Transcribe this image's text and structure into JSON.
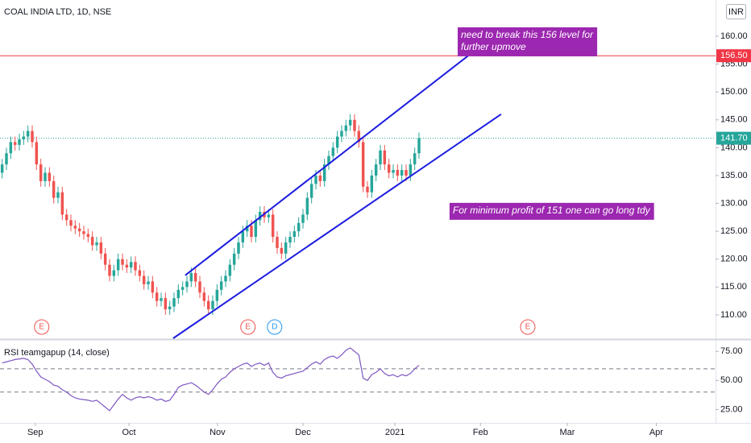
{
  "chart_data": [
    {
      "type": "candlestick",
      "title": "COAL INDIA LTD, 1D, NSE",
      "currency": "INR",
      "up_color": "#26a69a",
      "down_color": "#ef5350",
      "open": [
        135.5,
        137,
        139,
        141,
        140.5,
        141.5,
        142,
        143,
        141,
        137,
        134,
        135.5,
        134,
        131,
        132,
        128,
        127,
        126,
        125.5,
        125,
        124.5,
        124,
        122.5,
        123,
        121,
        119,
        117,
        118,
        120,
        119,
        118.5,
        119.5,
        118,
        117,
        115.5,
        116,
        114,
        112.5,
        113,
        111,
        111.5,
        113,
        114.5,
        115,
        116,
        117.5,
        116,
        114,
        112.5,
        111,
        112.5,
        114.5,
        116,
        117,
        119,
        121,
        123,
        125,
        126,
        124,
        127,
        128.5,
        127.5,
        128,
        124,
        122,
        121,
        123,
        124,
        125,
        126.5,
        128,
        131,
        133.5,
        135,
        134,
        137,
        138.5,
        140,
        142,
        143,
        144,
        145,
        143,
        141,
        133,
        132,
        135,
        137,
        139.5,
        137,
        135.5,
        136,
        135,
        136,
        135,
        137,
        139
      ],
      "high": [
        138,
        140,
        142,
        142,
        142.5,
        143,
        144,
        144,
        142,
        138,
        136.5,
        136.5,
        135,
        133,
        133,
        129,
        128,
        127,
        126.5,
        126,
        125.5,
        125,
        124,
        124,
        122,
        120,
        119,
        121,
        121,
        120,
        120.5,
        120.5,
        119,
        118,
        117,
        117,
        115,
        114,
        114,
        112.5,
        114,
        115.5,
        116,
        117,
        118.5,
        118.5,
        117,
        115,
        113.5,
        113.5,
        115.5,
        117,
        118,
        120,
        122,
        124,
        126,
        127,
        127,
        128,
        129.5,
        129.5,
        129,
        129,
        125,
        123,
        124,
        125,
        126,
        127.5,
        129,
        132,
        134.5,
        136,
        136,
        138,
        139.5,
        141,
        143,
        144,
        145,
        146,
        146,
        144,
        142,
        134,
        136,
        138,
        140.5,
        140.5,
        138,
        137,
        137,
        137,
        137,
        138,
        140,
        142.7
      ],
      "low": [
        134.5,
        136,
        138,
        139.5,
        139.5,
        140.5,
        141,
        140,
        136,
        133,
        133,
        133,
        130,
        130,
        127,
        126,
        125,
        124.5,
        124,
        123.5,
        123,
        121.5,
        121.5,
        120,
        118,
        116,
        116,
        117,
        118,
        117.5,
        117.5,
        117,
        116,
        114.5,
        114.5,
        113,
        111.5,
        111.5,
        110,
        110,
        110.5,
        112,
        113.5,
        114,
        115,
        115,
        113,
        111.5,
        110,
        110,
        111.5,
        113.5,
        115,
        116,
        118,
        120,
        122,
        124,
        123,
        123,
        126,
        126.5,
        126.5,
        123,
        121,
        120,
        120,
        122,
        123,
        124,
        125.5,
        127,
        130,
        132.5,
        133,
        133,
        136,
        137.5,
        139,
        141,
        142,
        143,
        142,
        140,
        132,
        131,
        131,
        134,
        136,
        136,
        134.5,
        134.5,
        134,
        134,
        134,
        134,
        136,
        138
      ],
      "close": [
        137,
        139,
        141,
        140.5,
        141.5,
        142,
        143,
        141,
        137,
        134,
        135.5,
        134,
        131,
        132,
        128,
        127,
        126,
        125.5,
        125,
        124.5,
        124,
        122.5,
        123,
        121,
        119,
        117,
        118,
        120,
        119,
        118.5,
        119.5,
        118,
        117,
        115.5,
        116,
        114,
        112.5,
        113,
        111,
        111.5,
        113,
        114.5,
        115,
        116,
        117.5,
        116,
        114,
        112.5,
        111,
        112.5,
        114.5,
        116,
        117,
        119,
        121,
        123,
        125,
        126,
        124,
        127,
        128.5,
        127.5,
        128,
        124,
        122,
        121,
        123,
        124,
        125,
        126.5,
        128,
        131,
        133.5,
        135,
        134,
        137,
        138.5,
        140,
        142,
        143,
        144,
        145,
        143,
        141,
        133,
        132,
        135,
        137,
        139.5,
        137,
        135.5,
        136,
        135,
        136,
        135,
        137,
        139,
        141.7
      ],
      "xlim": [
        -0.5,
        166
      ],
      "xticks": [
        {
          "value": 7.7,
          "label": "Sep"
        },
        {
          "value": 29.5,
          "label": "Oct"
        },
        {
          "value": 50.1,
          "label": "Nov"
        },
        {
          "value": 70,
          "label": "Dec"
        },
        {
          "value": 91.4,
          "label": "2021"
        },
        {
          "value": 111.3,
          "label": "Feb"
        },
        {
          "value": 131.5,
          "label": "Mar"
        },
        {
          "value": 152.2,
          "label": "Apr"
        }
      ],
      "ylim": [
        105.8,
        166.5
      ],
      "yticks": [
        {
          "value": 110,
          "label": "110.00"
        },
        {
          "value": 115,
          "label": "115.00"
        },
        {
          "value": 120,
          "label": "120.00"
        },
        {
          "value": 125,
          "label": "125.00"
        },
        {
          "value": 130,
          "label": "130.00"
        },
        {
          "value": 135,
          "label": "135.00"
        },
        {
          "value": 140,
          "label": "140.00"
        },
        {
          "value": 145,
          "label": "145.00"
        },
        {
          "value": 150,
          "label": "150.00"
        },
        {
          "value": 155,
          "label": "155.00"
        },
        {
          "value": 160,
          "label": "160.00"
        }
      ],
      "grid": false,
      "price_line": {
        "value": 156.5,
        "label": "156.50",
        "color": "#f23645"
      },
      "last_price": {
        "value": 141.7,
        "label": "141.70",
        "color": "#26a69a"
      },
      "trendlines": [
        {
          "x": [
            42.6,
            110.1
          ],
          "y": [
            117.1,
            157.5
          ],
          "color": "#1c1ce0"
        },
        {
          "x": [
            39.8,
            116.1
          ],
          "y": [
            105.8,
            146.0
          ],
          "color": "#1c1ce0"
        }
      ],
      "annotations": [
        {
          "x": 106,
          "y": 161.6,
          "lines": [
            "need to break this 156 level for",
            "further upmove"
          ],
          "color": "#9c27b0"
        },
        {
          "x": 104.1,
          "y": 130.1,
          "lines": [
            "For minimum profit of 151 one can go long tdy"
          ],
          "color": "#9c27b0"
        }
      ],
      "events": [
        {
          "x": 9.2,
          "label": "E",
          "color": "#ef5350"
        },
        {
          "x": 57.2,
          "label": "E",
          "color": "#ef5350"
        },
        {
          "x": 63.4,
          "label": "D",
          "color": "#2196f3"
        },
        {
          "x": 122.3,
          "label": "E",
          "color": "#ef5350"
        }
      ]
    },
    {
      "type": "line",
      "title": "RSI teamgapup (14, close)",
      "color": "#7e57c2",
      "values": [
        65,
        66,
        67,
        68,
        68.5,
        69,
        68,
        64,
        58,
        53,
        51,
        49,
        46,
        45,
        42,
        40,
        37,
        35,
        34,
        33.5,
        33,
        32,
        33,
        30,
        27,
        24,
        29,
        34,
        38,
        35,
        33,
        35,
        36,
        35,
        36,
        35,
        33,
        34,
        32,
        33,
        38,
        44,
        46,
        47,
        48,
        46,
        43,
        40,
        38,
        42,
        47,
        51,
        53,
        57,
        60,
        62,
        64,
        65,
        62,
        64,
        65,
        63,
        65,
        57,
        53,
        52,
        54,
        55,
        56,
        57,
        58,
        61,
        64,
        66,
        64,
        68,
        70,
        71,
        69,
        72,
        76,
        78,
        75,
        72,
        52,
        50,
        55,
        57,
        60,
        56,
        54,
        55,
        53,
        55,
        54,
        56,
        60,
        63
      ],
      "xlim": [
        -0.5,
        166
      ],
      "ylim": [
        13.5,
        82.8
      ],
      "yticks": [
        {
          "value": 25,
          "label": "25.00"
        },
        {
          "value": 50,
          "label": "50.00"
        },
        {
          "value": 75,
          "label": "75.00"
        }
      ],
      "bands": [
        60,
        40
      ]
    }
  ]
}
